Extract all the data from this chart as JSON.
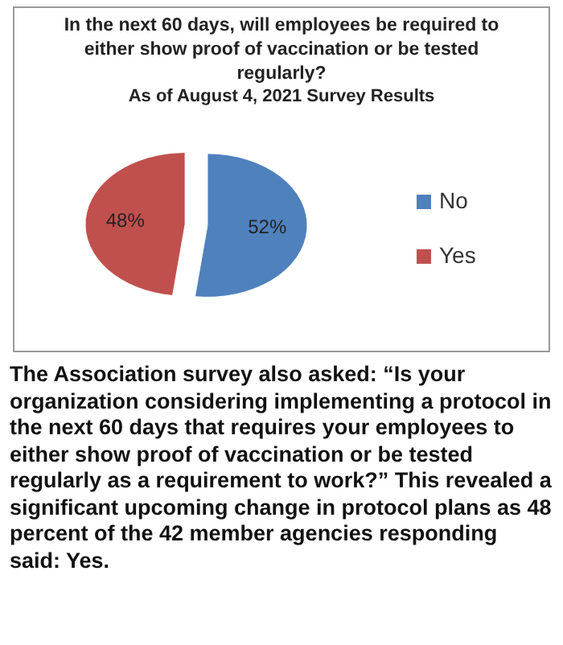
{
  "chart_data": {
    "type": "pie",
    "title": "In the next 60 days, will employees be required to either show proof of vaccination or be tested regularly?",
    "subtitle": "As of August 4, 2021 Survey Results",
    "categories": [
      "No",
      "Yes"
    ],
    "values": [
      52,
      48
    ],
    "colors": [
      "#4f81bd",
      "#c0504d"
    ],
    "value_labels": [
      "52%",
      "48%"
    ],
    "legend": "right",
    "annotations": [
      "The Association survey also asked: “Is your organization considering implementing a protocol in the next 60 days that requires your employees to either show proof of vaccination or be tested regularly as a requirement to work?” This revealed a significant upcoming change in protocol plans as 48 percent of the 42 member agencies responding said:  Yes."
    ]
  }
}
